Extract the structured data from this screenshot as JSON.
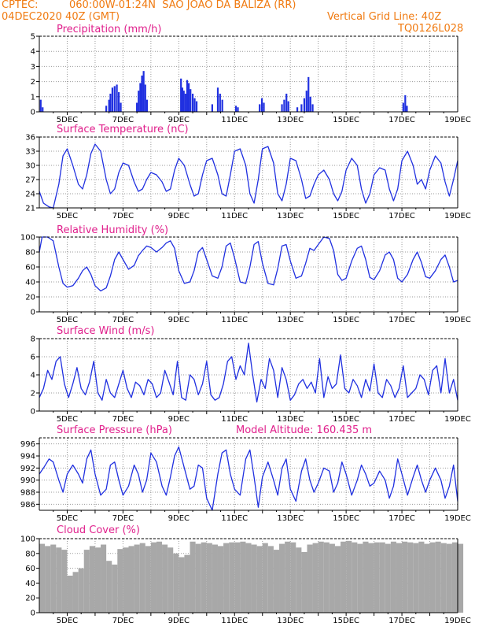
{
  "header": {
    "source": "CPTEC:",
    "location": "060:00W-01:24N  SAO JOAO DA BALIZA (RR)",
    "run": "04DEC2020 40Z (GMT)",
    "grid_note": "Vertical Grid Line: 40Z",
    "model": "TQ0126L028"
  },
  "colors": {
    "header": "#f07a10",
    "panel_title": "#e0208c",
    "line": "#2030e0",
    "bar": "#2030e0",
    "cloud": "#a8a8a8"
  },
  "x_ticks": [
    "5DEC",
    "7DEC",
    "9DEC",
    "11DEC",
    "13DEC",
    "15DEC",
    "17DEC",
    "19DEC"
  ],
  "chart_data": [
    {
      "type": "bar",
      "title": "Precipitation (mm/h)",
      "ylim": [
        0,
        5
      ],
      "yticks": [
        "0",
        "1",
        "2",
        "3",
        "4",
        "5"
      ],
      "x_range_days": [
        4.0,
        19.0
      ],
      "bars": [
        {
          "x": 4.05,
          "value": 0.8
        },
        {
          "x": 4.12,
          "value": 0.3
        },
        {
          "x": 6.4,
          "value": 0.4
        },
        {
          "x": 6.5,
          "value": 0.8
        },
        {
          "x": 6.55,
          "value": 1.2
        },
        {
          "x": 6.62,
          "value": 1.6
        },
        {
          "x": 6.7,
          "value": 1.7
        },
        {
          "x": 6.78,
          "value": 1.8
        },
        {
          "x": 6.85,
          "value": 1.3
        },
        {
          "x": 6.92,
          "value": 0.6
        },
        {
          "x": 7.5,
          "value": 0.6
        },
        {
          "x": 7.56,
          "value": 1.4
        },
        {
          "x": 7.62,
          "value": 1.9
        },
        {
          "x": 7.68,
          "value": 2.4
        },
        {
          "x": 7.74,
          "value": 2.7
        },
        {
          "x": 7.8,
          "value": 1.8
        },
        {
          "x": 7.86,
          "value": 0.8
        },
        {
          "x": 9.08,
          "value": 2.2
        },
        {
          "x": 9.13,
          "value": 1.6
        },
        {
          "x": 9.18,
          "value": 1.4
        },
        {
          "x": 9.24,
          "value": 1.2
        },
        {
          "x": 9.3,
          "value": 2.1
        },
        {
          "x": 9.36,
          "value": 1.9
        },
        {
          "x": 9.42,
          "value": 1.5
        },
        {
          "x": 9.5,
          "value": 1.2
        },
        {
          "x": 9.57,
          "value": 0.9
        },
        {
          "x": 9.64,
          "value": 0.7
        },
        {
          "x": 10.2,
          "value": 0.5
        },
        {
          "x": 10.4,
          "value": 1.6
        },
        {
          "x": 10.48,
          "value": 1.2
        },
        {
          "x": 10.56,
          "value": 0.8
        },
        {
          "x": 11.05,
          "value": 0.4
        },
        {
          "x": 11.12,
          "value": 0.3
        },
        {
          "x": 11.9,
          "value": 0.5
        },
        {
          "x": 11.98,
          "value": 0.9
        },
        {
          "x": 12.05,
          "value": 0.6
        },
        {
          "x": 12.7,
          "value": 0.5
        },
        {
          "x": 12.78,
          "value": 0.8
        },
        {
          "x": 12.86,
          "value": 1.2
        },
        {
          "x": 12.93,
          "value": 0.7
        },
        {
          "x": 13.25,
          "value": 0.3
        },
        {
          "x": 13.4,
          "value": 0.5
        },
        {
          "x": 13.5,
          "value": 0.9
        },
        {
          "x": 13.58,
          "value": 1.4
        },
        {
          "x": 13.65,
          "value": 2.3
        },
        {
          "x": 13.72,
          "value": 1.0
        },
        {
          "x": 13.8,
          "value": 0.5
        },
        {
          "x": 17.05,
          "value": 0.6
        },
        {
          "x": 17.12,
          "value": 1.1
        },
        {
          "x": 17.18,
          "value": 0.4
        }
      ]
    },
    {
      "type": "line",
      "title": "Surface Temperature (nC)",
      "ylim": [
        21,
        36
      ],
      "yticks": [
        "21",
        "24",
        "27",
        "30",
        "33",
        "36"
      ],
      "x": [
        4.0,
        4.15,
        4.35,
        4.5,
        4.7,
        4.85,
        5.0,
        5.2,
        5.4,
        5.55,
        5.7,
        5.85,
        6.0,
        6.2,
        6.4,
        6.55,
        6.7,
        6.85,
        7.0,
        7.2,
        7.4,
        7.55,
        7.7,
        7.85,
        8.0,
        8.2,
        8.4,
        8.55,
        8.7,
        8.85,
        9.0,
        9.2,
        9.4,
        9.55,
        9.7,
        9.85,
        10.0,
        10.2,
        10.4,
        10.55,
        10.7,
        10.85,
        11.0,
        11.2,
        11.4,
        11.55,
        11.7,
        11.85,
        12.0,
        12.2,
        12.4,
        12.55,
        12.7,
        12.85,
        13.0,
        13.2,
        13.4,
        13.55,
        13.7,
        13.85,
        14.0,
        14.2,
        14.4,
        14.55,
        14.7,
        14.85,
        15.0,
        15.2,
        15.4,
        15.55,
        15.7,
        15.85,
        16.0,
        16.2,
        16.4,
        16.55,
        16.7,
        16.85,
        17.0,
        17.2,
        17.4,
        17.55,
        17.7,
        17.85,
        18.0,
        18.2,
        18.4,
        18.55,
        18.7,
        18.85,
        19.0
      ],
      "values": [
        24.5,
        22.0,
        21.2,
        21.0,
        26.0,
        32.0,
        33.5,
        30.0,
        26.0,
        25.0,
        28.0,
        32.5,
        34.5,
        33.0,
        27.0,
        24.0,
        25.0,
        28.5,
        30.5,
        30.0,
        26.5,
        24.5,
        25.0,
        27.0,
        28.5,
        28.0,
        26.5,
        24.5,
        25.0,
        29.0,
        31.5,
        30.0,
        26.0,
        23.5,
        24.0,
        28.0,
        31.0,
        31.5,
        28.0,
        24.0,
        23.5,
        28.0,
        33.0,
        33.5,
        30.0,
        24.0,
        22.0,
        27.0,
        33.5,
        34.0,
        30.5,
        24.0,
        22.5,
        26.0,
        31.5,
        31.0,
        27.0,
        23.0,
        23.5,
        26.0,
        28.0,
        29.0,
        27.0,
        24.0,
        22.5,
        24.5,
        29.0,
        31.5,
        30.0,
        25.0,
        22.0,
        24.0,
        28.0,
        29.5,
        29.0,
        25.0,
        22.5,
        25.0,
        31.0,
        33.0,
        30.0,
        26.0,
        27.0,
        25.0,
        29.0,
        32.0,
        30.5,
        26.5,
        23.5,
        27.0,
        31.0
      ]
    },
    {
      "type": "line",
      "title": "Relative Humidity (%)",
      "ylim": [
        0,
        100
      ],
      "yticks": [
        "0",
        "20",
        "40",
        "60",
        "80",
        "100"
      ],
      "x": [
        4.0,
        4.1,
        4.3,
        4.5,
        4.7,
        4.85,
        5.0,
        5.2,
        5.4,
        5.55,
        5.7,
        5.85,
        6.0,
        6.2,
        6.4,
        6.55,
        6.7,
        6.85,
        7.0,
        7.2,
        7.4,
        7.55,
        7.7,
        7.85,
        8.0,
        8.2,
        8.4,
        8.55,
        8.7,
        8.85,
        9.0,
        9.2,
        9.4,
        9.55,
        9.7,
        9.85,
        10.0,
        10.2,
        10.4,
        10.55,
        10.7,
        10.85,
        11.0,
        11.2,
        11.4,
        11.55,
        11.7,
        11.85,
        12.0,
        12.2,
        12.4,
        12.55,
        12.7,
        12.85,
        13.0,
        13.2,
        13.4,
        13.55,
        13.7,
        13.85,
        14.0,
        14.2,
        14.4,
        14.55,
        14.7,
        14.85,
        15.0,
        15.2,
        15.4,
        15.55,
        15.7,
        15.85,
        16.0,
        16.2,
        16.4,
        16.55,
        16.7,
        16.85,
        17.0,
        17.2,
        17.4,
        17.55,
        17.7,
        17.85,
        18.0,
        18.2,
        18.4,
        18.55,
        18.7,
        18.85,
        19.0
      ],
      "values": [
        80,
        100,
        100,
        95,
        60,
        38,
        33,
        35,
        45,
        55,
        60,
        50,
        35,
        28,
        32,
        48,
        70,
        80,
        70,
        57,
        62,
        75,
        82,
        88,
        86,
        80,
        86,
        92,
        95,
        85,
        55,
        38,
        40,
        55,
        80,
        86,
        70,
        48,
        45,
        60,
        88,
        92,
        72,
        40,
        38,
        60,
        90,
        94,
        65,
        38,
        36,
        58,
        88,
        90,
        68,
        45,
        48,
        65,
        85,
        82,
        90,
        100,
        98,
        82,
        50,
        42,
        45,
        68,
        85,
        88,
        70,
        46,
        43,
        55,
        76,
        80,
        70,
        45,
        40,
        50,
        70,
        80,
        66,
        47,
        45,
        55,
        70,
        76,
        60,
        40,
        42
      ]
    },
    {
      "type": "line",
      "title": "Surface Wind (m/s)",
      "ylim": [
        0,
        8
      ],
      "yticks": [
        "0",
        "2",
        "4",
        "6",
        "8"
      ],
      "x": [
        4.0,
        4.15,
        4.3,
        4.45,
        4.6,
        4.75,
        4.9,
        5.05,
        5.2,
        5.35,
        5.5,
        5.65,
        5.8,
        5.95,
        6.1,
        6.25,
        6.4,
        6.55,
        6.7,
        6.85,
        7.0,
        7.15,
        7.3,
        7.45,
        7.6,
        7.75,
        7.9,
        8.05,
        8.2,
        8.35,
        8.5,
        8.65,
        8.8,
        8.95,
        9.1,
        9.25,
        9.4,
        9.55,
        9.7,
        9.85,
        10.0,
        10.15,
        10.3,
        10.45,
        10.6,
        10.75,
        10.9,
        11.05,
        11.2,
        11.35,
        11.5,
        11.65,
        11.8,
        11.95,
        12.1,
        12.25,
        12.4,
        12.55,
        12.7,
        12.85,
        13.0,
        13.15,
        13.3,
        13.45,
        13.6,
        13.75,
        13.9,
        14.05,
        14.2,
        14.35,
        14.5,
        14.65,
        14.8,
        14.95,
        15.1,
        15.25,
        15.4,
        15.55,
        15.7,
        15.85,
        16.0,
        16.15,
        16.3,
        16.45,
        16.6,
        16.75,
        16.9,
        17.05,
        17.2,
        17.35,
        17.5,
        17.65,
        17.8,
        17.95,
        18.1,
        18.25,
        18.4,
        18.55,
        18.7,
        18.85,
        19.0
      ],
      "values": [
        1.5,
        2.5,
        4.5,
        3.5,
        5.5,
        6.0,
        3.0,
        1.5,
        3.0,
        4.8,
        2.5,
        1.8,
        3.2,
        5.5,
        2.0,
        1.2,
        3.5,
        2.0,
        1.5,
        3.0,
        4.5,
        2.5,
        1.5,
        3.2,
        2.8,
        1.8,
        3.5,
        3.0,
        1.5,
        2.0,
        4.5,
        3.2,
        1.8,
        5.5,
        1.5,
        1.2,
        4.0,
        3.5,
        1.8,
        3.0,
        5.5,
        1.8,
        1.2,
        1.5,
        3.0,
        5.5,
        6.0,
        3.5,
        5.0,
        4.0,
        7.5,
        4.0,
        1.0,
        3.5,
        2.5,
        5.8,
        4.5,
        1.5,
        4.8,
        3.5,
        1.2,
        1.8,
        3.0,
        3.5,
        2.5,
        3.2,
        2.0,
        5.8,
        1.5,
        3.8,
        2.5,
        3.0,
        6.2,
        2.5,
        2.0,
        3.5,
        2.8,
        1.5,
        3.5,
        2.2,
        5.2,
        2.0,
        1.5,
        3.5,
        2.8,
        1.5,
        2.5,
        5.0,
        1.5,
        2.0,
        2.5,
        4.0,
        3.5,
        1.8,
        4.5,
        5.0,
        2.0,
        5.8,
        2.0,
        3.5,
        1.2
      ]
    },
    {
      "type": "line",
      "title": "Surface Pressure (hPa)",
      "annotation": "Model Altitude: 160.435 m",
      "ylim": [
        985,
        997
      ],
      "yticks": [
        "986",
        "988",
        "990",
        "992",
        "994",
        "996"
      ],
      "x": [
        4.0,
        4.15,
        4.35,
        4.5,
        4.7,
        4.85,
        5.0,
        5.2,
        5.4,
        5.55,
        5.7,
        5.85,
        6.0,
        6.2,
        6.4,
        6.55,
        6.7,
        6.85,
        7.0,
        7.2,
        7.4,
        7.55,
        7.7,
        7.85,
        8.0,
        8.2,
        8.4,
        8.55,
        8.7,
        8.85,
        9.0,
        9.2,
        9.4,
        9.55,
        9.7,
        9.85,
        10.0,
        10.2,
        10.4,
        10.55,
        10.7,
        10.85,
        11.0,
        11.2,
        11.4,
        11.55,
        11.7,
        11.85,
        12.0,
        12.2,
        12.4,
        12.55,
        12.7,
        12.85,
        13.0,
        13.2,
        13.4,
        13.55,
        13.7,
        13.85,
        14.0,
        14.2,
        14.4,
        14.55,
        14.7,
        14.85,
        15.0,
        15.2,
        15.4,
        15.55,
        15.7,
        15.85,
        16.0,
        16.2,
        16.4,
        16.55,
        16.7,
        16.85,
        17.0,
        17.2,
        17.4,
        17.55,
        17.7,
        17.85,
        18.0,
        18.2,
        18.4,
        18.55,
        18.7,
        18.85,
        19.0
      ],
      "values": [
        991.0,
        992.0,
        993.5,
        993.0,
        990.0,
        988.0,
        991.0,
        992.5,
        991.0,
        989.5,
        993.5,
        995.0,
        991.0,
        987.5,
        988.5,
        992.5,
        993.0,
        990.0,
        987.5,
        989.0,
        992.5,
        991.0,
        988.0,
        990.0,
        994.5,
        993.0,
        989.0,
        987.5,
        990.5,
        994.0,
        995.5,
        992.0,
        988.5,
        989.0,
        992.5,
        992.0,
        987.0,
        985.0,
        991.0,
        994.5,
        995.0,
        991.0,
        988.5,
        987.5,
        993.5,
        995.0,
        990.5,
        985.5,
        990.5,
        993.0,
        990.0,
        987.5,
        992.0,
        993.5,
        988.5,
        986.5,
        991.5,
        993.5,
        990.0,
        988.0,
        989.5,
        992.0,
        991.5,
        988.0,
        989.5,
        993.0,
        991.0,
        987.5,
        990.0,
        992.5,
        991.0,
        989.0,
        989.5,
        991.5,
        990.0,
        987.0,
        989.0,
        993.5,
        991.0,
        987.5,
        990.5,
        992.5,
        990.0,
        988.0,
        990.0,
        992.0,
        990.0,
        987.0,
        989.0,
        992.5,
        986.5
      ]
    },
    {
      "type": "area",
      "title": "Cloud Cover (%)",
      "ylim": [
        0,
        100
      ],
      "yticks": [
        "0",
        "20",
        "40",
        "60",
        "80",
        "100"
      ],
      "x": [
        4.0,
        4.2,
        4.4,
        4.6,
        4.8,
        5.0,
        5.2,
        5.4,
        5.6,
        5.8,
        6.0,
        6.2,
        6.4,
        6.6,
        6.8,
        7.0,
        7.2,
        7.4,
        7.6,
        7.8,
        8.0,
        8.2,
        8.4,
        8.6,
        8.8,
        9.0,
        9.2,
        9.4,
        9.6,
        9.8,
        10.0,
        10.2,
        10.4,
        10.6,
        10.8,
        11.0,
        11.2,
        11.4,
        11.6,
        11.8,
        12.0,
        12.2,
        12.4,
        12.6,
        12.8,
        13.0,
        13.2,
        13.4,
        13.6,
        13.8,
        14.0,
        14.2,
        14.4,
        14.6,
        14.8,
        15.0,
        15.2,
        15.4,
        15.6,
        15.8,
        16.0,
        16.2,
        16.4,
        16.6,
        16.8,
        17.0,
        17.2,
        17.4,
        17.6,
        17.8,
        18.0,
        18.2,
        18.4,
        18.6,
        18.8,
        19.0
      ],
      "values": [
        93,
        90,
        92,
        88,
        85,
        50,
        55,
        60,
        85,
        90,
        88,
        92,
        70,
        65,
        86,
        88,
        90,
        92,
        94,
        90,
        95,
        96,
        92,
        88,
        80,
        75,
        78,
        96,
        93,
        95,
        94,
        92,
        90,
        94,
        95,
        95,
        96,
        94,
        92,
        90,
        94,
        90,
        85,
        93,
        96,
        95,
        88,
        82,
        92,
        94,
        96,
        95,
        93,
        90,
        96,
        97,
        95,
        93,
        96,
        94,
        95,
        95,
        93,
        96,
        94,
        96,
        95,
        94,
        96,
        93,
        95,
        96,
        94,
        93,
        95,
        93
      ]
    }
  ]
}
